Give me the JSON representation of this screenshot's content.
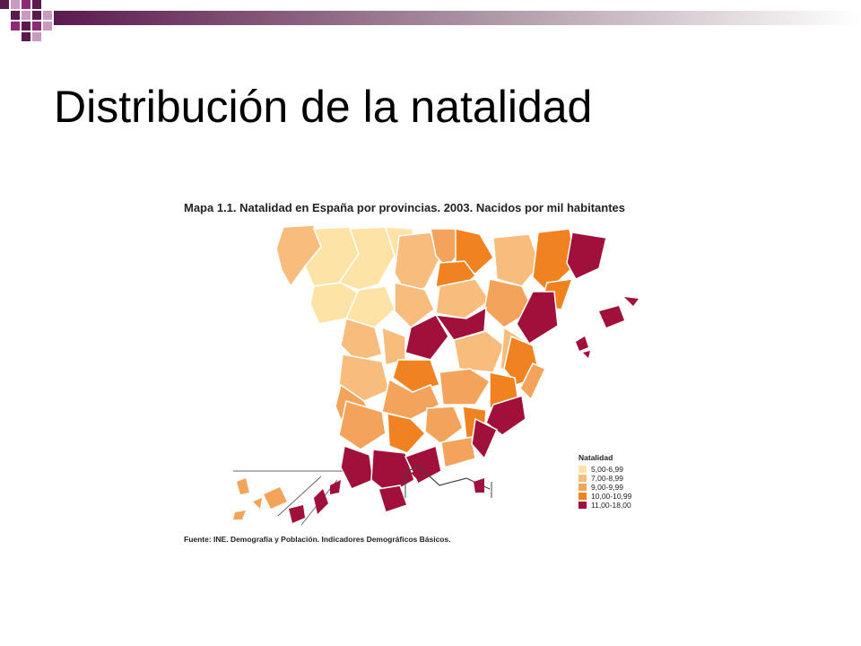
{
  "slide": {
    "title": "Distribución de la natalidad"
  },
  "map": {
    "caption": "Mapa 1.1. Natalidad en España por provincias. 2003. Nacidos por mil habitantes",
    "source": "Fuente: INE. Demografía y Población. Indicadores Demográficos Básicos.",
    "legend": {
      "title": "Natalidad",
      "items": [
        {
          "label": "5,00-6,99",
          "color": "#fde4a6"
        },
        {
          "label": "7,00-8,99",
          "color": "#f8bd7c"
        },
        {
          "label": "9,00-9,99",
          "color": "#f4a45a"
        },
        {
          "label": "10,00-10,99",
          "color": "#f08220"
        },
        {
          "label": "11,00-18,00",
          "color": "#a0103a"
        }
      ]
    }
  },
  "theme": {
    "accent_purple": "#5b1a4e",
    "accent_magenta": "#8e2a78"
  }
}
